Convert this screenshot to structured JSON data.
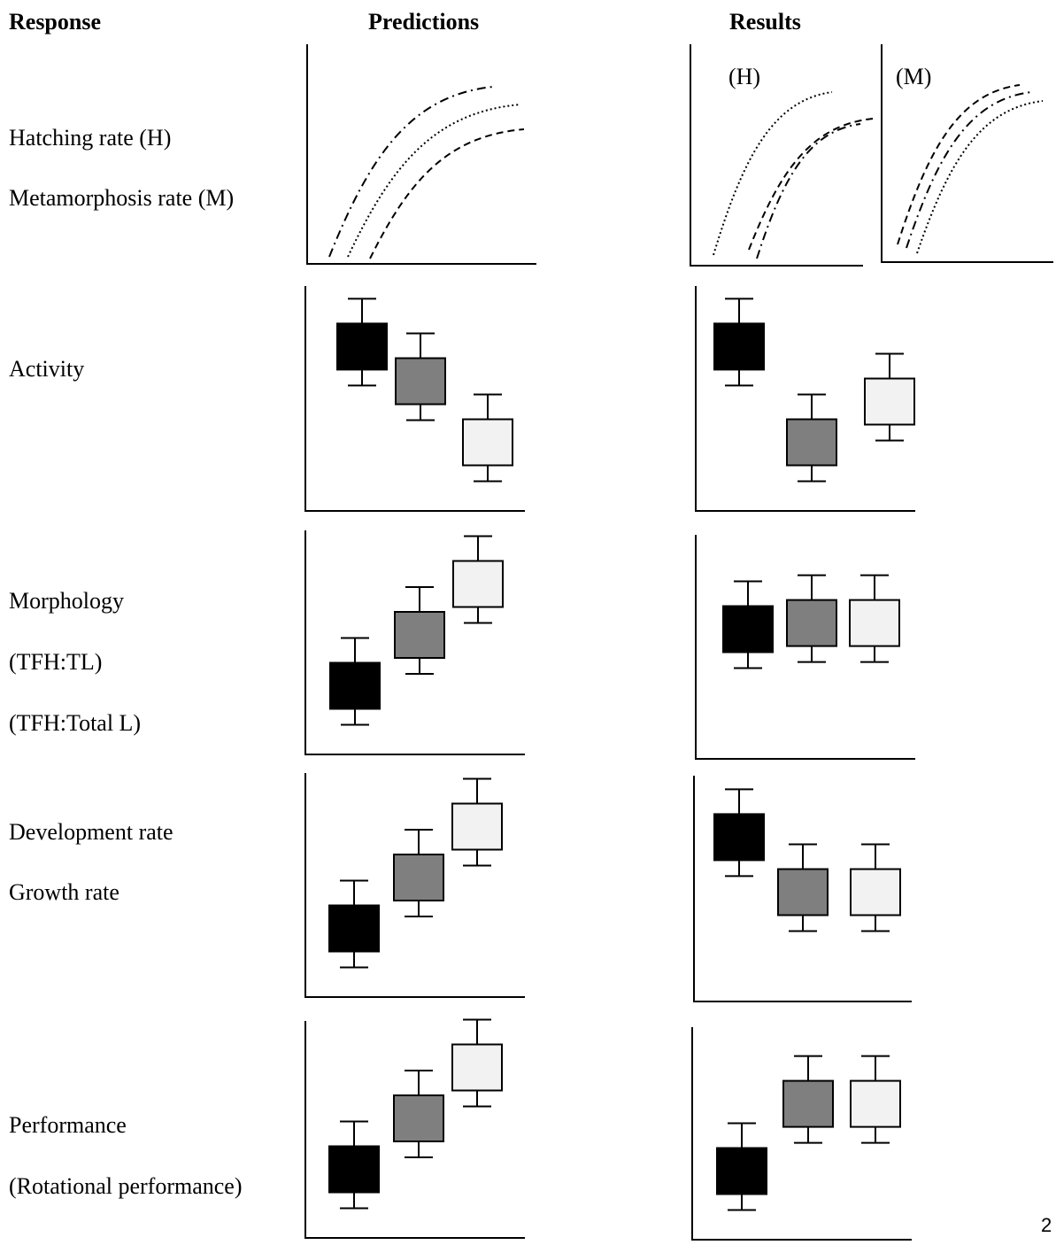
{
  "headers": {
    "response": "Response",
    "predictions": "Predictions",
    "results": "Results"
  },
  "rows": [
    {
      "labels": [
        "Hatching rate (H)",
        "Metamorphosis rate (M)"
      ]
    },
    {
      "labels": [
        "Activity"
      ]
    },
    {
      "labels": [
        "Morphology",
        "(TFH:TL)",
        "(TFH:Total L)"
      ]
    },
    {
      "labels": [
        "Development rate",
        "Growth rate"
      ]
    },
    {
      "labels": [
        "Performance",
        "(Rotational performance)"
      ]
    }
  ],
  "curve_panels": {
    "hatching": "(H)",
    "metamorphosis": "(M)"
  },
  "curve_styles": [
    "dash-dot",
    "dotted",
    "dashed"
  ],
  "fills": {
    "black": "#000000",
    "gray": "#7f7f7f",
    "light": "#f2f2f2"
  },
  "box_panels": {
    "activity_predictions": [
      {
        "fill": "black",
        "level": 0.72
      },
      {
        "fill": "gray",
        "level": 0.55
      },
      {
        "fill": "light",
        "level": 0.25
      }
    ],
    "activity_results": [
      {
        "fill": "black",
        "level": 0.72
      },
      {
        "fill": "gray",
        "level": 0.25
      },
      {
        "fill": "light",
        "level": 0.45
      }
    ],
    "morphology_predictions": [
      {
        "fill": "black",
        "level": 0.25
      },
      {
        "fill": "gray",
        "level": 0.5
      },
      {
        "fill": "light",
        "level": 0.75
      }
    ],
    "morphology_results": [
      {
        "fill": "black",
        "level": 0.55
      },
      {
        "fill": "gray",
        "level": 0.58
      },
      {
        "fill": "light",
        "level": 0.58
      }
    ],
    "development_predictions": [
      {
        "fill": "black",
        "level": 0.25
      },
      {
        "fill": "gray",
        "level": 0.5
      },
      {
        "fill": "light",
        "level": 0.75
      }
    ],
    "development_results": [
      {
        "fill": "black",
        "level": 0.72
      },
      {
        "fill": "gray",
        "level": 0.45
      },
      {
        "fill": "light",
        "level": 0.45
      }
    ],
    "performance_predictions": [
      {
        "fill": "black",
        "level": 0.25
      },
      {
        "fill": "gray",
        "level": 0.5
      },
      {
        "fill": "light",
        "level": 0.75
      }
    ],
    "performance_results": [
      {
        "fill": "black",
        "level": 0.25
      },
      {
        "fill": "gray",
        "level": 0.58
      },
      {
        "fill": "light",
        "level": 0.58
      }
    ]
  },
  "page_number": "2"
}
